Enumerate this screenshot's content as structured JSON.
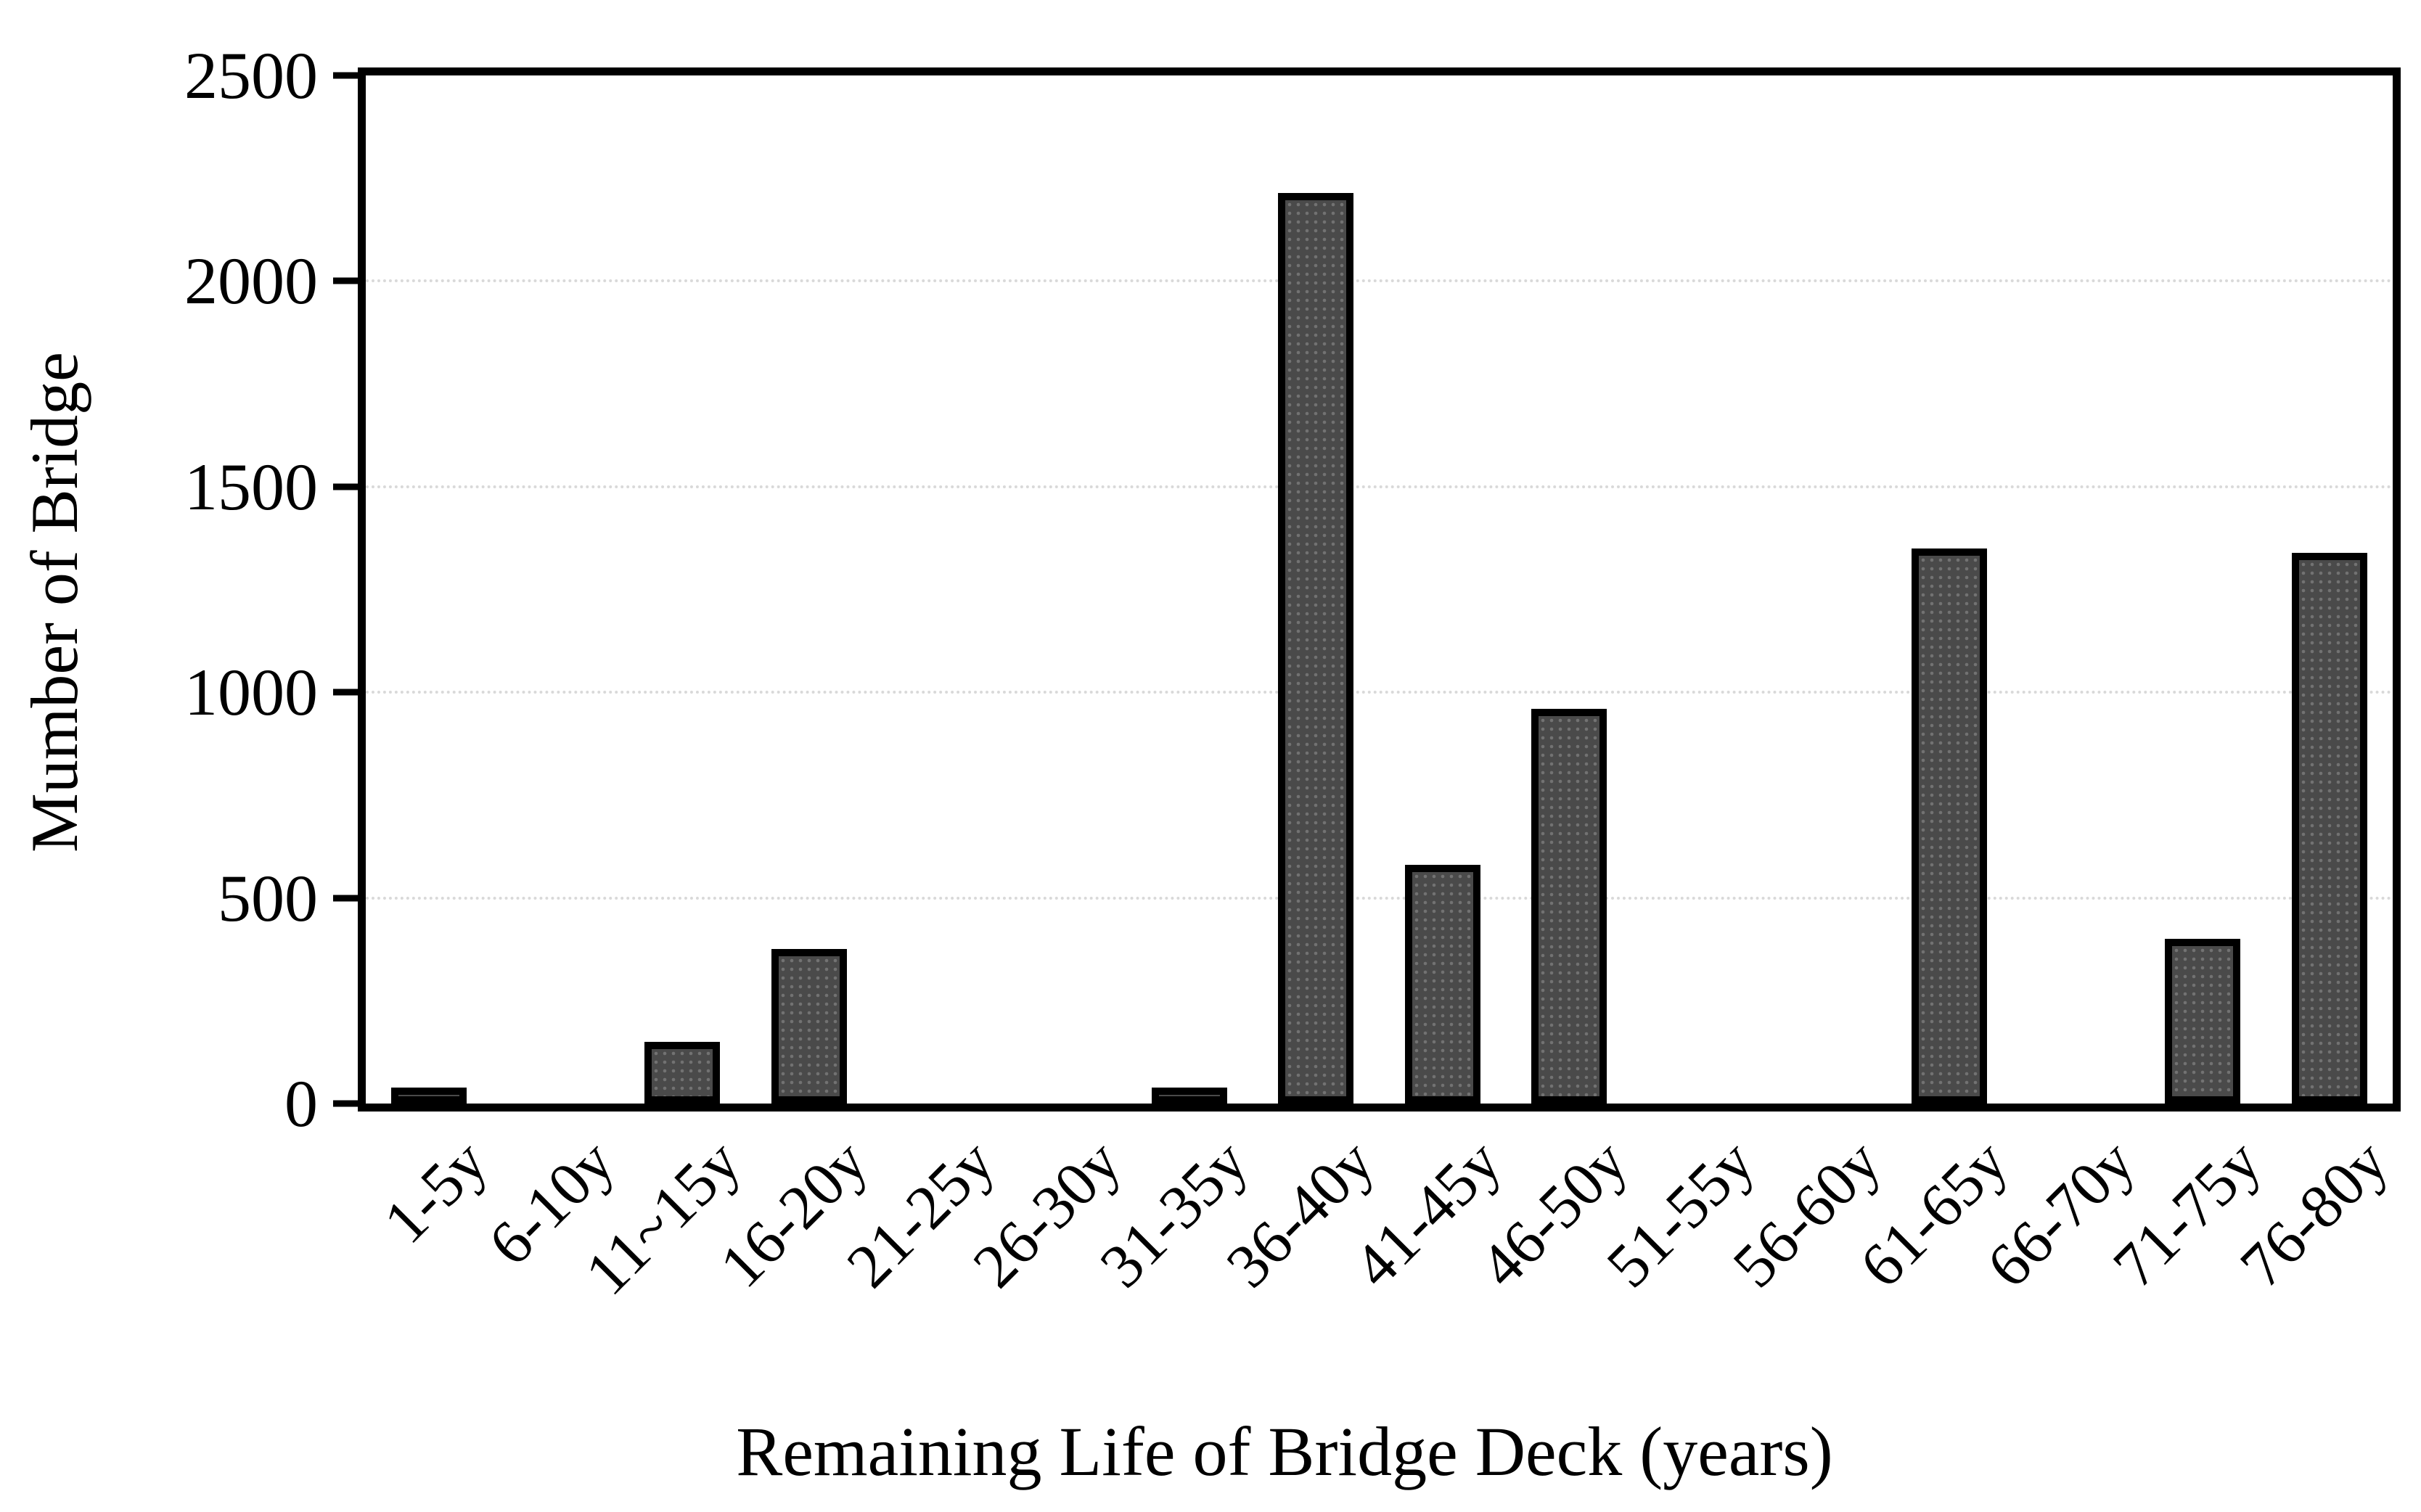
{
  "figure": {
    "background_color": "#ffffff",
    "axis_color": "#000000",
    "gridline_color": "#d9d9d9",
    "bar_fill_color": "#4a4a4a",
    "bar_border_color": "#000000"
  },
  "chart_data": {
    "type": "bar",
    "title": "",
    "xlabel": "Remaining Life of Bridge Deck (years)",
    "ylabel": "Mumber of Bridge",
    "categories": [
      "1-5y",
      "6-10y",
      "11~15y",
      "16-20y",
      "21-25y",
      "26-30y",
      "31-35y",
      "36-40y",
      "41-45y",
      "46-50y",
      "51-55y",
      "56-60y",
      "61-65y",
      "66-70y",
      "71-75y",
      "76-80y"
    ],
    "values": [
      15,
      0,
      150,
      375,
      0,
      0,
      25,
      2215,
      580,
      960,
      0,
      0,
      1350,
      0,
      400,
      1340
    ],
    "ylim": [
      0,
      2500
    ],
    "yticks": [
      0,
      500,
      1000,
      1500,
      2000,
      2500
    ],
    "grid": "horizontal-dotted",
    "legend": "none",
    "x_tick_rotation_deg": 45
  }
}
